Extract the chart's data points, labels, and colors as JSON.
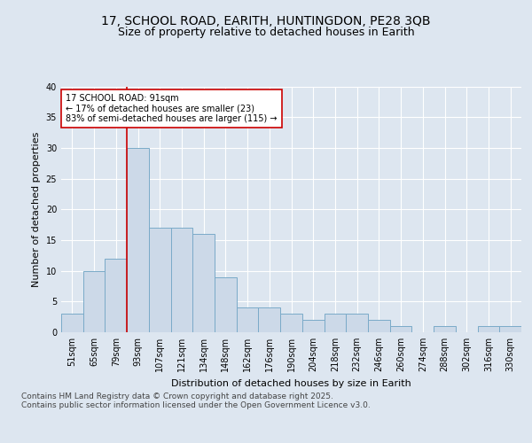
{
  "title_line1": "17, SCHOOL ROAD, EARITH, HUNTINGDON, PE28 3QB",
  "title_line2": "Size of property relative to detached houses in Earith",
  "xlabel": "Distribution of detached houses by size in Earith",
  "ylabel": "Number of detached properties",
  "categories": [
    "51sqm",
    "65sqm",
    "79sqm",
    "93sqm",
    "107sqm",
    "121sqm",
    "134sqm",
    "148sqm",
    "162sqm",
    "176sqm",
    "190sqm",
    "204sqm",
    "218sqm",
    "232sqm",
    "246sqm",
    "260sqm",
    "274sqm",
    "288sqm",
    "302sqm",
    "316sqm",
    "330sqm"
  ],
  "values": [
    3,
    10,
    12,
    30,
    17,
    17,
    16,
    9,
    4,
    4,
    3,
    2,
    3,
    3,
    2,
    1,
    0,
    1,
    0,
    1,
    1
  ],
  "bar_color": "#ccd9e8",
  "bar_edge_color": "#7aaac8",
  "vline_color": "#cc0000",
  "vline_x": 2.5,
  "annotation_text": "17 SCHOOL ROAD: 91sqm\n← 17% of detached houses are smaller (23)\n83% of semi-detached houses are larger (115) →",
  "annotation_box_facecolor": "#ffffff",
  "annotation_box_edgecolor": "#cc0000",
  "background_color": "#dde6f0",
  "plot_bg_color": "#dde6f0",
  "ylim": [
    0,
    40
  ],
  "yticks": [
    0,
    5,
    10,
    15,
    20,
    25,
    30,
    35,
    40
  ],
  "footer_text": "Contains HM Land Registry data © Crown copyright and database right 2025.\nContains public sector information licensed under the Open Government Licence v3.0.",
  "title_fontsize": 10,
  "subtitle_fontsize": 9,
  "axis_label_fontsize": 8,
  "tick_fontsize": 7,
  "annotation_fontsize": 7,
  "footer_fontsize": 6.5
}
